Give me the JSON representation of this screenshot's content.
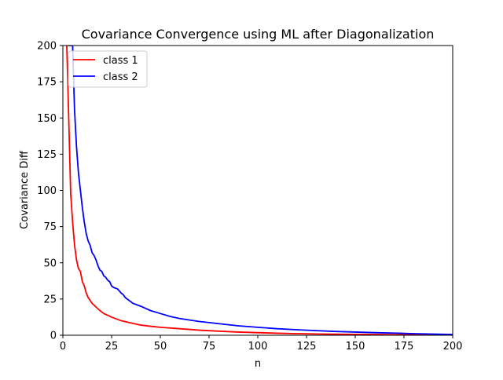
{
  "chart_data": {
    "type": "line",
    "title": "Covariance Convergence using ML after Diagonalization",
    "xlabel": "n",
    "ylabel": "Covariance Diff",
    "xlim": [
      0,
      200
    ],
    "ylim": [
      0,
      200
    ],
    "xticks": [
      0,
      25,
      50,
      75,
      100,
      125,
      150,
      175,
      200
    ],
    "yticks": [
      0,
      25,
      50,
      75,
      100,
      125,
      150,
      175,
      200
    ],
    "grid": false,
    "legend_position": "top-left",
    "series": [
      {
        "name": "class 1",
        "color": "#ff0000",
        "x": [
          2,
          3,
          4,
          5,
          6,
          7,
          8,
          9,
          10,
          11,
          12,
          13,
          14,
          15,
          17,
          19,
          21,
          23,
          25,
          30,
          35,
          40,
          45,
          50,
          60,
          70,
          80,
          90,
          100,
          110,
          120,
          130,
          140,
          150,
          160,
          170,
          180,
          190,
          200
        ],
        "values": [
          200,
          150,
          98,
          78,
          62,
          52,
          46,
          44,
          37,
          34,
          29,
          26,
          24,
          22,
          19.5,
          17,
          15,
          13.8,
          12.5,
          10,
          8.5,
          7,
          6.2,
          5.5,
          4.5,
          3.5,
          2.8,
          2.2,
          1.8,
          1.4,
          1.1,
          0.9,
          0.7,
          0.6,
          0.5,
          0.4,
          0.3,
          0.2,
          0.1
        ]
      },
      {
        "name": "class 2",
        "color": "#0000ff",
        "x": [
          3,
          4,
          5,
          6,
          7,
          8,
          9,
          10,
          11,
          12,
          13,
          14,
          15,
          16,
          17,
          18,
          19,
          20,
          21,
          22,
          23,
          24,
          25,
          26,
          28,
          30,
          31,
          32,
          34,
          36,
          38,
          40,
          45,
          50,
          55,
          60,
          70,
          80,
          90,
          100,
          110,
          120,
          130,
          140,
          150,
          160,
          170,
          180,
          190,
          200
        ],
        "values": [
          200,
          200,
          200,
          155,
          130,
          112,
          100,
          88,
          78,
          70,
          65,
          62,
          57,
          55,
          52,
          48,
          45,
          44,
          41,
          40,
          38,
          37,
          34,
          33,
          32,
          29,
          28,
          26,
          24,
          22,
          21,
          20,
          17,
          15,
          13,
          11.5,
          9.5,
          8,
          6.5,
          5.5,
          4.5,
          3.8,
          3.2,
          2.6,
          2.2,
          1.8,
          1.5,
          1.1,
          0.8,
          0.5
        ]
      }
    ]
  }
}
